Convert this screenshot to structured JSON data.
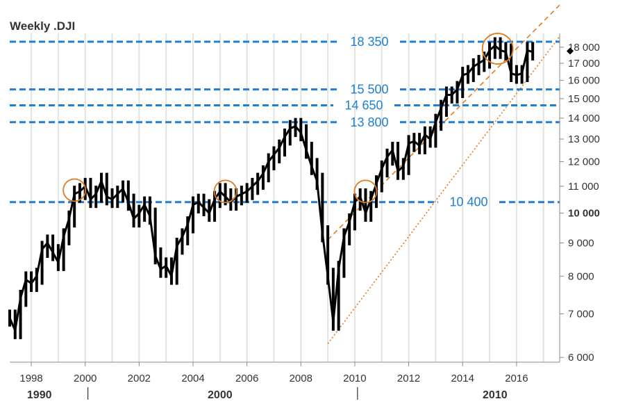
{
  "chart_data": {
    "type": "line",
    "title": "Weekly .DJI",
    "xlim": [
      1997.2,
      2017.6
    ],
    "ylim": [
      5900,
      18900
    ],
    "y_scale": "log",
    "x_ticks": [
      1998,
      2000,
      2002,
      2004,
      2006,
      2008,
      2010,
      2012,
      2014,
      2016
    ],
    "y_ticks": [
      6000,
      7000,
      8000,
      9000,
      10000,
      11000,
      12000,
      13000,
      14000,
      15000,
      16000,
      17000,
      18000
    ],
    "y_tick_labels": [
      "6 000",
      "7 000",
      "8 000",
      "9 000",
      "10 000",
      "11 000",
      "12 000",
      "13 000",
      "14 000",
      "15 000",
      "16 000",
      "17 000",
      "18 000"
    ],
    "y_bold_tick": 10000,
    "decade_labels": [
      {
        "x": 1998.3,
        "text": "1990"
      },
      {
        "x": 2005.0,
        "text": "2000"
      },
      {
        "x": 2015.2,
        "text": "2010"
      }
    ],
    "decade_separators": [
      2000.1,
      2010.1
    ],
    "grid": "vertical",
    "series": [
      {
        "style": "ohlc-weekly",
        "x": [
          1997.2,
          1997.4,
          1997.6,
          1997.8,
          1998.0,
          1998.2,
          1998.4,
          1998.6,
          1998.8,
          1999.0,
          1999.2,
          1999.4,
          1999.6,
          1999.8,
          2000.0,
          2000.2,
          2000.4,
          2000.6,
          2000.8,
          2001.0,
          2001.2,
          2001.4,
          2001.6,
          2001.8,
          2002.0,
          2002.2,
          2002.4,
          2002.6,
          2002.8,
          2003.0,
          2003.2,
          2003.4,
          2003.6,
          2003.8,
          2004.0,
          2004.2,
          2004.4,
          2004.6,
          2004.8,
          2005.0,
          2005.2,
          2005.4,
          2005.6,
          2005.8,
          2006.0,
          2006.2,
          2006.4,
          2006.6,
          2006.8,
          2007.0,
          2007.2,
          2007.4,
          2007.6,
          2007.8,
          2008.0,
          2008.2,
          2008.4,
          2008.6,
          2008.8,
          2009.0,
          2009.2,
          2009.4,
          2009.6,
          2009.8,
          2010.0,
          2010.2,
          2010.4,
          2010.6,
          2010.8,
          2011.0,
          2011.2,
          2011.4,
          2011.6,
          2011.8,
          2012.0,
          2012.2,
          2012.4,
          2012.6,
          2012.8,
          2013.0,
          2013.2,
          2013.4,
          2013.6,
          2013.8,
          2014.0,
          2014.2,
          2014.4,
          2014.6,
          2014.8,
          2015.0,
          2015.2,
          2015.4,
          2015.6,
          2015.8,
          2016.0,
          2016.2,
          2016.4,
          2016.6
        ],
        "y": [
          6900,
          6600,
          7400,
          7900,
          7800,
          8000,
          8800,
          9000,
          8700,
          8400,
          9200,
          9800,
          10700,
          10800,
          11000,
          10500,
          10700,
          11200,
          10600,
          10500,
          10700,
          10900,
          10400,
          9800,
          10000,
          10300,
          9900,
          8600,
          8200,
          8300,
          8000,
          8900,
          9200,
          9600,
          10300,
          10400,
          10200,
          10000,
          10500,
          10800,
          10600,
          10400,
          10600,
          10700,
          10800,
          11000,
          11200,
          11500,
          12000,
          12300,
          12600,
          13100,
          13500,
          13600,
          13300,
          12500,
          11800,
          11200,
          9300,
          8000,
          6800,
          8200,
          9200,
          9700,
          10400,
          10600,
          10000,
          10500,
          11100,
          11700,
          12200,
          12500,
          11600,
          11800,
          12800,
          12900,
          12700,
          13200,
          13000,
          13800,
          14500,
          15200,
          15200,
          15500,
          16300,
          16400,
          16800,
          17000,
          17200,
          17800,
          18100,
          17800,
          17700,
          16400,
          16300,
          16400,
          17800,
          17700
        ]
      }
    ],
    "levels": [
      {
        "value": 18350,
        "label": "18 350"
      },
      {
        "value": 15500,
        "label": "15 500"
      },
      {
        "value": 14650,
        "label": "14 650"
      },
      {
        "value": 13800,
        "label": "13 800"
      },
      {
        "value": 10400,
        "label": "10 400"
      }
    ],
    "channel": {
      "upper": {
        "x": [
          2009.0,
          2017.6
        ],
        "y": [
          9100,
          20900
        ]
      },
      "lower": {
        "x": [
          2009.0,
          2017.6
        ],
        "y": [
          6300,
          18700
        ]
      }
    },
    "highlights": [
      {
        "x": 1999.6,
        "y": 10850
      },
      {
        "x": 2005.2,
        "y": 10800
      },
      {
        "x": 2010.4,
        "y": 10800
      },
      {
        "x": 2015.3,
        "y": 17900
      }
    ],
    "last_value_marker": 17750,
    "colors": {
      "price": "#000000",
      "level": "#1e7fd4",
      "channel": "#e07a1c",
      "grid": "#e2e2e2",
      "axis": "#888888",
      "text": "#333333"
    }
  }
}
